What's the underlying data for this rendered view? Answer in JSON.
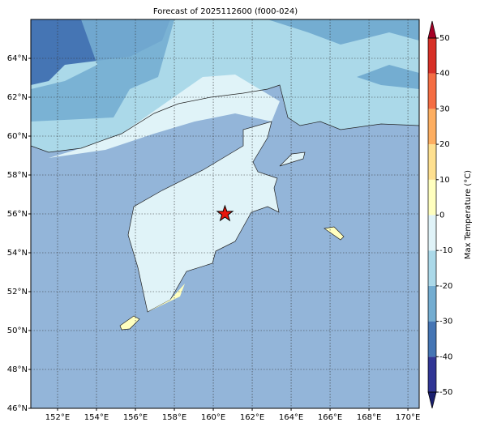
{
  "title": "Forecast of 2025112600 (f000-024)",
  "map": {
    "xlim": [
      150.625,
      170.58
    ],
    "ylim": [
      46,
      66
    ],
    "xticks": [
      {
        "value": 152,
        "label": "152°E"
      },
      {
        "value": 154,
        "label": "154°E"
      },
      {
        "value": 156,
        "label": "156°E"
      },
      {
        "value": 158,
        "label": "158°E"
      },
      {
        "value": 160,
        "label": "160°E"
      },
      {
        "value": 162,
        "label": "162°E"
      },
      {
        "value": 164,
        "label": "164°E"
      },
      {
        "value": 166,
        "label": "166°E"
      },
      {
        "value": 168,
        "label": "168°E"
      },
      {
        "value": 170,
        "label": "170°E"
      }
    ],
    "yticks": [
      {
        "value": 46,
        "label": "46°N"
      },
      {
        "value": 48,
        "label": "48°N"
      },
      {
        "value": 50,
        "label": "50°N"
      },
      {
        "value": 52,
        "label": "52°N"
      },
      {
        "value": 54,
        "label": "54°N"
      },
      {
        "value": 56,
        "label": "56°N"
      },
      {
        "value": 58,
        "label": "58°N"
      },
      {
        "value": 60,
        "label": "60°N"
      },
      {
        "value": 62,
        "label": "62°N"
      },
      {
        "value": 64,
        "label": "64°N"
      }
    ],
    "grid": true,
    "marker": {
      "lon": 160.6,
      "lat": 56,
      "color": "#e8160c"
    }
  },
  "colorbar": {
    "label": "Max Temperature (°C)",
    "lim": [
      -50,
      50
    ],
    "ticks": [
      -50,
      -40,
      -30,
      -20,
      -10,
      0,
      10,
      20,
      30,
      40,
      50
    ],
    "colors": [
      "#313695",
      "#4575b4",
      "#74add1",
      "#abd9e9",
      "#e0f3f8",
      "#ffffbf",
      "#fee090",
      "#fdae61",
      "#f46d43",
      "#d73027"
    ],
    "extend_colors": [
      "#1a1f6e",
      "#a50026"
    ]
  }
}
